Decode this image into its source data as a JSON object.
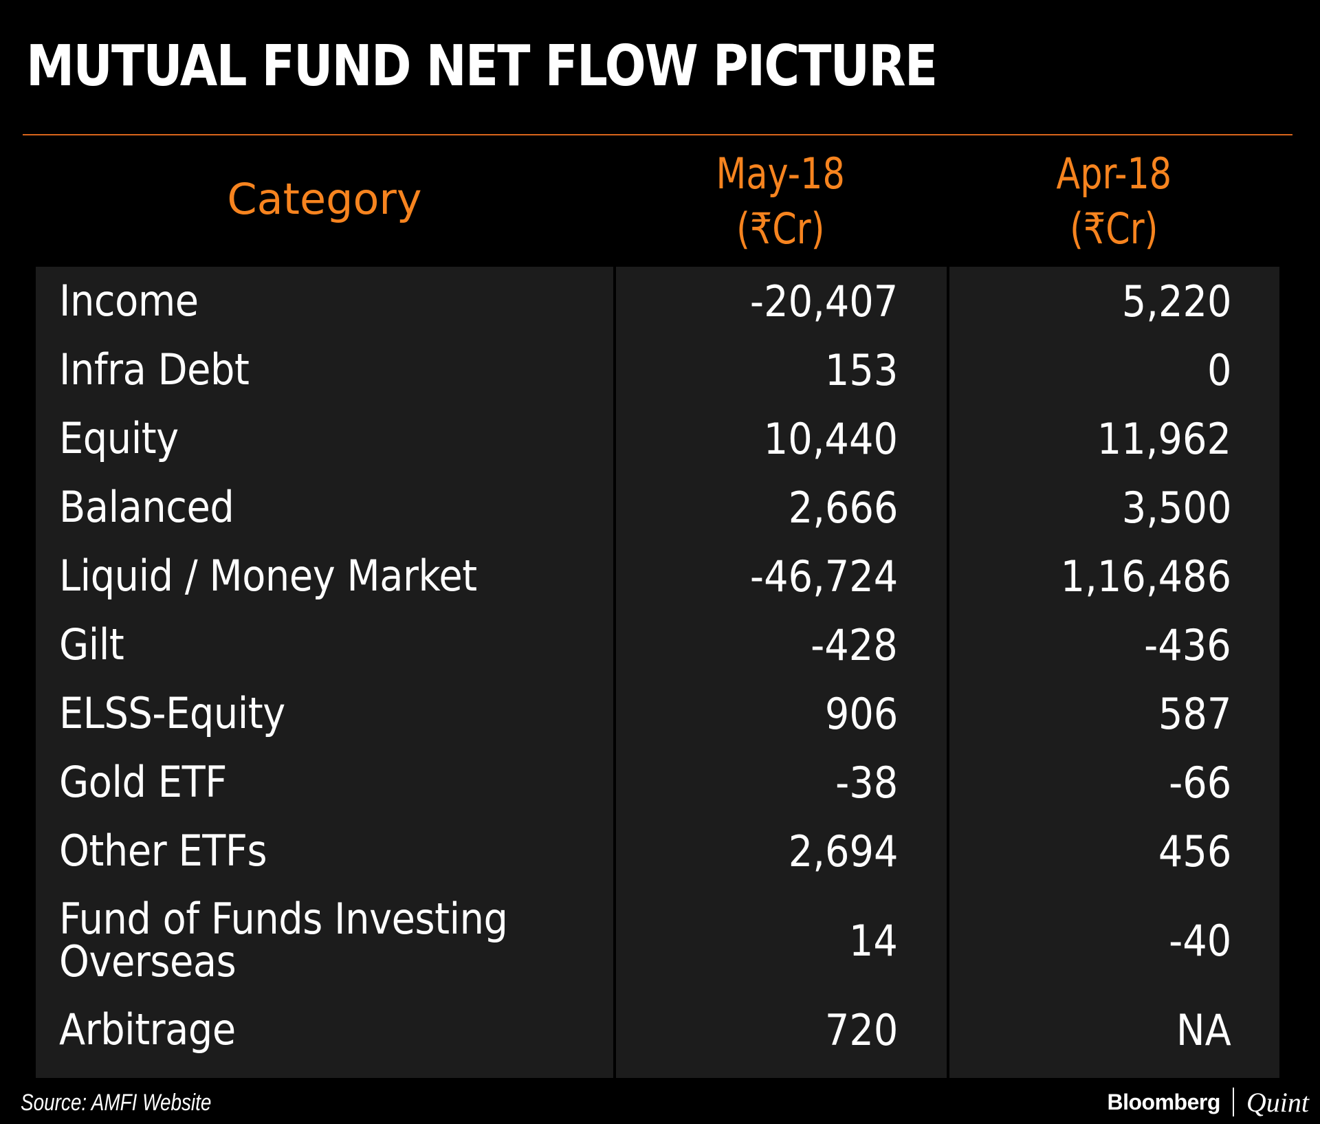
{
  "title": "MUTUAL FUND NET FLOW PICTURE",
  "colors": {
    "background": "#000000",
    "accent": "#f7841f",
    "rule": "#d9651c",
    "table_bg": "#1c1c1c",
    "text": "#ffffff"
  },
  "source": "Source: AMFI Website",
  "brand": {
    "left": "Bloomberg",
    "right": "Quint"
  },
  "chart_data": {
    "type": "table",
    "title": "MUTUAL FUND NET FLOW PICTURE",
    "columns": [
      {
        "line1": "Category",
        "line2": ""
      },
      {
        "line1": "May-18",
        "line2": "(₹Cr)"
      },
      {
        "line1": "Apr-18",
        "line2": "(₹Cr)"
      }
    ],
    "rows": [
      {
        "category": "Income",
        "may": "-20,407",
        "apr": "5,220"
      },
      {
        "category": "Infra Debt",
        "may": "153",
        "apr": "0"
      },
      {
        "category": "Equity",
        "may": "10,440",
        "apr": "11,962"
      },
      {
        "category": "Balanced",
        "may": "2,666",
        "apr": "3,500"
      },
      {
        "category": "Liquid / Money Market",
        "may": "-46,724",
        "apr": "1,16,486"
      },
      {
        "category": "Gilt",
        "may": "-428",
        "apr": "-436"
      },
      {
        "category": "ELSS-Equity",
        "may": "906",
        "apr": "587"
      },
      {
        "category": "Gold ETF",
        "may": "-38",
        "apr": "-66"
      },
      {
        "category": "Other ETFs",
        "may": "2,694",
        "apr": "456"
      },
      {
        "category": "Fund of Funds Investing Overseas",
        "category_lines": [
          "Fund of Funds Investing",
          "Overseas"
        ],
        "may": "14",
        "apr": "-40"
      },
      {
        "category": "Arbitrage",
        "may": "720",
        "apr": "NA"
      }
    ]
  }
}
